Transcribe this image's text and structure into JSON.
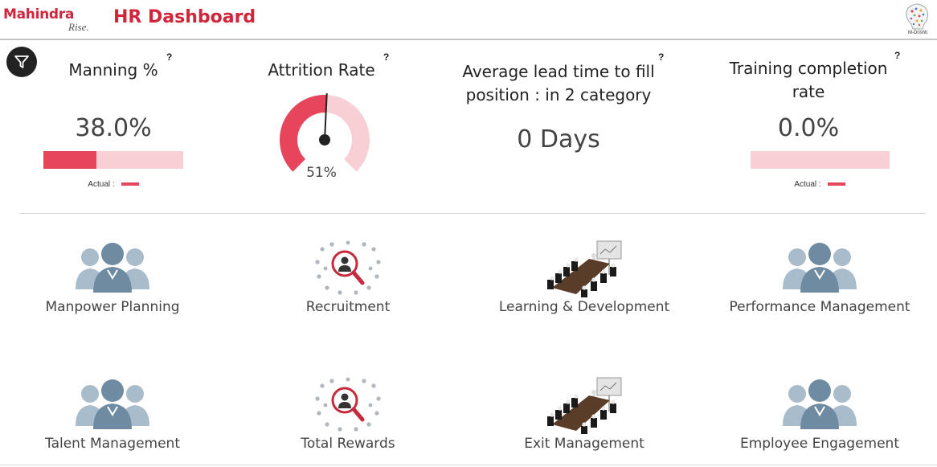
{
  "header": {
    "logo_main": "Mahindra",
    "logo_sub": "Rise.",
    "title": "HR Dashboard",
    "brand_label": "M-Drishti"
  },
  "filter_icon": "filter-icon",
  "kpis": {
    "manning": {
      "title": "Manning %",
      "help": "?",
      "value": "38.0%",
      "progress": 0.38,
      "legend_label": "Actual :"
    },
    "attrition": {
      "title": "Attrition Rate",
      "help": "?",
      "value": "51%",
      "gauge_fraction": 0.51
    },
    "lead_time": {
      "title_line1": "Average lead time to fill",
      "title_line2": "position : in 2 category",
      "help": "?",
      "value": "0 Days"
    },
    "training": {
      "title_line1": "Training completion",
      "title_line2": "rate",
      "help": "?",
      "value": "0.0%",
      "progress": 0.0,
      "legend_label": "Actual :"
    }
  },
  "modules": [
    {
      "label": "Manpower Planning",
      "icon": "people-group-icon"
    },
    {
      "label": "Recruitment",
      "icon": "crowd-magnifier-icon"
    },
    {
      "label": "Learning & Development",
      "icon": "meeting-room-icon"
    },
    {
      "label": "Performance Management",
      "icon": "people-group-icon"
    },
    {
      "label": "Talent Management",
      "icon": "people-group-icon"
    },
    {
      "label": "Total Rewards",
      "icon": "crowd-magnifier-icon"
    },
    {
      "label": "Exit Management",
      "icon": "meeting-room-icon"
    },
    {
      "label": "Employee Engagement",
      "icon": "people-group-icon"
    }
  ],
  "colors": {
    "brand_red": "#d0253a",
    "accent": "#e6455c",
    "accent_light": "#f7cfd5",
    "people_blue": "#7d98ad"
  }
}
